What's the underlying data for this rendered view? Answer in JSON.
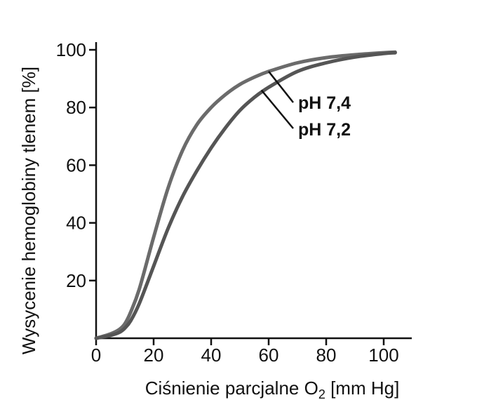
{
  "chart_data": {
    "type": "line",
    "xlabel": "Ciśnienie parcjalne O",
    "xlabel_sub": "2",
    "xlabel_unit": " [mm Hg]",
    "ylabel": "Wysycenie hemoglobiny tlenem [%]",
    "xlim": [
      0,
      110
    ],
    "ylim": [
      0,
      100
    ],
    "x_ticks": [
      0,
      20,
      40,
      60,
      80,
      100
    ],
    "y_ticks": [
      20,
      40,
      60,
      80,
      100
    ],
    "x_tick_labels": [
      "0",
      "20",
      "40",
      "60",
      "80",
      "100"
    ],
    "y_tick_labels": [
      "20",
      "40",
      "60",
      "80",
      "100"
    ],
    "grid": false,
    "series": [
      {
        "name": "pH 7,4",
        "color": "#6b6b6b",
        "x": [
          0,
          5,
          8,
          10,
          12,
          15,
          20,
          25,
          30,
          35,
          40,
          45,
          50,
          55,
          60,
          70,
          80,
          90,
          100,
          104
        ],
        "y": [
          0,
          1.5,
          3,
          5,
          9,
          17,
          35,
          52,
          65,
          74,
          80,
          84.5,
          88,
          90.5,
          92.5,
          95.5,
          97.3,
          98.3,
          99,
          99.2
        ]
      },
      {
        "name": "pH 7,2",
        "color": "#555555",
        "x": [
          0,
          5,
          8,
          10,
          12,
          15,
          20,
          25,
          30,
          35,
          40,
          45,
          50,
          55,
          60,
          70,
          80,
          90,
          100,
          104
        ],
        "y": [
          0,
          1,
          2,
          3.5,
          6,
          12,
          25,
          38,
          49,
          58,
          66,
          73,
          79,
          83.5,
          87,
          92.5,
          95.5,
          97.5,
          98.7,
          99
        ]
      }
    ]
  }
}
